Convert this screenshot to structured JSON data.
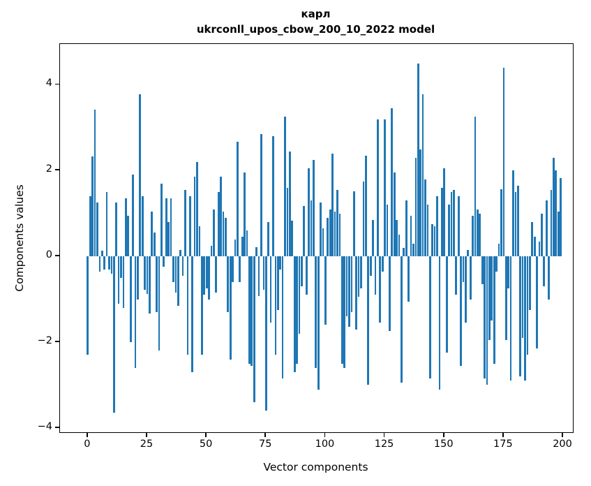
{
  "figure": {
    "title": "карл",
    "subtitle": "ukrconll_upos_cbow_200_10_2022 model"
  },
  "chart_data": {
    "type": "bar",
    "title": "карл",
    "subtitle": "ukrconll_upos_cbow_200_10_2022 model",
    "xlabel": "Vector components",
    "ylabel": "Components values",
    "x_note": "x = vector component index, 0 to 199",
    "x_ticks": [
      0,
      25,
      50,
      75,
      100,
      125,
      150,
      175,
      200
    ],
    "y_ticks": [
      -4,
      -2,
      0,
      2,
      4
    ],
    "y_tick_labels": [
      "−4",
      "−2",
      "0",
      "2",
      "4"
    ],
    "xlim": [
      -11.7,
      204.1
    ],
    "ylim": [
      -4.1,
      4.95
    ],
    "grid": false,
    "legend": null,
    "bar_color": "#1f77b4",
    "bar_width_units": 0.8,
    "values": [
      -2.3,
      1.4,
      2.33,
      3.42,
      1.26,
      -0.35,
      0.13,
      -0.3,
      1.5,
      -0.3,
      -0.4,
      -3.65,
      1.25,
      -1.1,
      -0.5,
      -1.2,
      1.35,
      0.95,
      -2.0,
      1.9,
      -2.6,
      -1.0,
      3.78,
      1.4,
      -0.78,
      -0.87,
      -1.33,
      1.05,
      0.55,
      -1.3,
      -2.2,
      1.7,
      -0.25,
      1.35,
      0.8,
      1.35,
      -0.6,
      -0.85,
      -1.15,
      0.15,
      -0.45,
      1.55,
      -2.3,
      1.4,
      -2.7,
      1.85,
      2.2,
      0.7,
      -2.3,
      -0.9,
      -0.75,
      -1.0,
      0.25,
      1.1,
      -0.85,
      1.5,
      1.85,
      1.05,
      0.9,
      -1.3,
      -2.4,
      -0.6,
      0.4,
      2.67,
      -0.6,
      0.45,
      1.95,
      0.6,
      -2.5,
      -2.55,
      -3.4,
      0.22,
      -0.92,
      2.85,
      -0.78,
      -3.6,
      0.8,
      -1.55,
      2.8,
      -2.3,
      -1.25,
      -0.3,
      -2.85,
      3.25,
      1.6,
      2.45,
      0.83,
      -2.7,
      -2.5,
      -1.8,
      -0.7,
      1.18,
      -0.9,
      2.05,
      1.3,
      2.25,
      -2.6,
      -3.1,
      1.25,
      0.65,
      -1.6,
      0.9,
      1.1,
      2.4,
      1.05,
      1.55,
      1.0,
      -2.5,
      -2.6,
      -1.4,
      -1.65,
      -1.3,
      1.52,
      -1.7,
      -0.95,
      -0.75,
      1.75,
      2.35,
      -3.0,
      -0.45,
      0.85,
      -0.9,
      3.2,
      -1.55,
      -0.35,
      3.2,
      1.2,
      -1.74,
      3.45,
      1.95,
      0.85,
      0.5,
      -2.95,
      0.2,
      1.3,
      -1.05,
      0.95,
      0.3,
      2.3,
      4.5,
      2.5,
      3.77,
      1.8,
      1.2,
      -2.85,
      0.75,
      0.7,
      1.4,
      -3.1,
      1.6,
      2.05,
      -2.25,
      1.2,
      1.5,
      1.55,
      -0.9,
      1.4,
      -2.55,
      -0.6,
      -1.55,
      0.15,
      -1.0,
      0.95,
      3.25,
      1.1,
      1.0,
      -0.65,
      -2.85,
      -3.0,
      -1.95,
      -1.5,
      -2.5,
      -0.35,
      0.3,
      1.56,
      4.4,
      -1.95,
      -0.75,
      -2.9,
      2.0,
      1.5,
      1.65,
      -2.8,
      -1.9,
      -2.9,
      -2.3,
      -1.25,
      0.8,
      0.45,
      -2.15,
      0.35,
      1.0,
      -0.7,
      1.3,
      -1.0,
      1.55,
      2.3,
      2.0,
      1.05,
      1.82
    ]
  }
}
